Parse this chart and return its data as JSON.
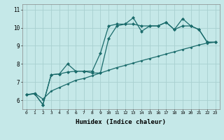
{
  "xlabel": "Humidex (Indice chaleur)",
  "background_color": "#c5e8e8",
  "grid_color": "#a8d0d0",
  "line_color": "#1a6b6b",
  "xlim": [
    -0.5,
    23.5
  ],
  "ylim": [
    5.5,
    11.3
  ],
  "xticks": [
    0,
    1,
    2,
    3,
    4,
    5,
    6,
    7,
    8,
    9,
    10,
    11,
    12,
    13,
    14,
    15,
    16,
    17,
    18,
    19,
    20,
    21,
    22,
    23
  ],
  "yticks": [
    6,
    7,
    8,
    9,
    10,
    11
  ],
  "line1": [
    6.3,
    6.35,
    5.75,
    7.4,
    7.45,
    8.0,
    7.6,
    7.6,
    7.6,
    8.6,
    10.1,
    10.2,
    10.2,
    10.55,
    9.8,
    10.1,
    10.1,
    10.3,
    9.9,
    10.1,
    10.1,
    9.9,
    9.2,
    9.2
  ],
  "line2": [
    6.3,
    6.35,
    5.75,
    7.4,
    7.45,
    7.55,
    7.6,
    7.6,
    7.5,
    7.5,
    9.4,
    10.1,
    10.2,
    10.2,
    10.1,
    10.1,
    10.1,
    10.3,
    9.9,
    10.5,
    10.1,
    9.9,
    9.2,
    9.2
  ],
  "line3": [
    6.3,
    6.38,
    6.06,
    6.5,
    6.7,
    6.9,
    7.1,
    7.2,
    7.35,
    7.5,
    7.65,
    7.8,
    7.92,
    8.05,
    8.18,
    8.3,
    8.42,
    8.55,
    8.67,
    8.8,
    8.92,
    9.05,
    9.15,
    9.2
  ]
}
